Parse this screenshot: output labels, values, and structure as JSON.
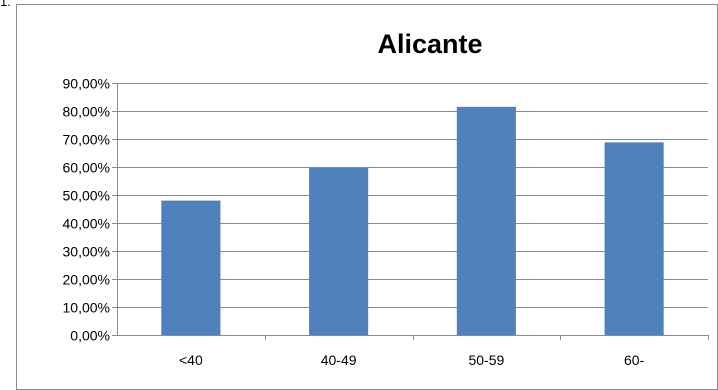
{
  "corner_text": "1.",
  "chart_data": {
    "type": "bar",
    "title": "Alicante",
    "categories": [
      "<40",
      "40-49",
      "50-59",
      "60-"
    ],
    "values": [
      0.48,
      0.597,
      0.815,
      0.688
    ],
    "ylim": [
      0,
      0.9
    ],
    "ytick_step": 0.1,
    "ytick_labels": [
      "0,00%",
      "10,00%",
      "20,00%",
      "30,00%",
      "40,00%",
      "50,00%",
      "60,00%",
      "70,00%",
      "80,00%",
      "90,00%"
    ],
    "grid": true,
    "legend": "none",
    "bar_color": "#4f81bd",
    "grid_color": "#8c8c8c"
  }
}
